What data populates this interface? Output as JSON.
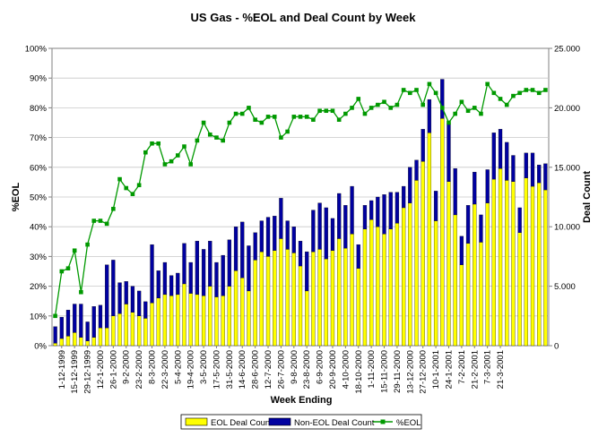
{
  "chart_data": {
    "type": "bar",
    "title": "US Gas - %EOL and Deal Count by Week",
    "xlabel": "Week Ending",
    "ylabel_left": "%EOL",
    "ylabel_right": "Deal Count",
    "ylim_left": [
      0,
      100
    ],
    "ylim_right": [
      0,
      25000
    ],
    "y_ticks_left": [
      "0%",
      "10%",
      "20%",
      "30%",
      "40%",
      "50%",
      "60%",
      "70%",
      "80%",
      "90%",
      "100%"
    ],
    "y_ticks_right": [
      "0",
      "5.000",
      "10.000",
      "15.000",
      "20.000",
      "25.000"
    ],
    "x_tick_labels": [
      "1-12-1999",
      "15-12-1999",
      "29-12-1999",
      "12-1-2000",
      "26-1-2000",
      "9-2-2000",
      "23-2-2000",
      "8-3-2000",
      "22-3-2000",
      "5-4-2000",
      "19-4-2000",
      "3-5-2000",
      "17-5-2000",
      "31-5-2000",
      "14-6-2000",
      "28-6-2000",
      "12-7-2000",
      "26-7-2000",
      "9-8-2000",
      "23-8-2000",
      "6-9-2000",
      "20-9-2000",
      "4-10-2000",
      "18-10-2000",
      "1-11-2000",
      "15-11-2000",
      "29-11-2000",
      "13-12-2000",
      "27-12-2000",
      "10-1-2001",
      "24-1-2001",
      "7-2-2001",
      "21-2-2001",
      "7-3-2001",
      "21-3-2001"
    ],
    "grid": true,
    "legend_position": "bottom",
    "series": [
      {
        "name": "EOL Deal Count",
        "kind": "bar",
        "axis": "right",
        "color": "#ffff00",
        "values": [
          200,
          600,
          800,
          1100,
          700,
          400,
          700,
          1500,
          1500,
          2500,
          2700,
          3500,
          2800,
          2500,
          2300,
          3600,
          4000,
          4300,
          4200,
          4300,
          5200,
          4400,
          4300,
          4200,
          5000,
          4100,
          4200,
          5000,
          6300,
          5700,
          4600,
          7200,
          7900,
          7500,
          8000,
          9000,
          8100,
          7800,
          6700,
          4600,
          7900,
          8100,
          7300,
          8000,
          9000,
          8200,
          9400,
          6500,
          9800,
          10600,
          10000,
          9400,
          9800,
          10300,
          11600,
          12000,
          13900,
          15500,
          17900,
          10500,
          19100,
          13800,
          11000,
          6800,
          8600,
          11900,
          8700,
          12000,
          14000,
          14900,
          13900,
          13800,
          9500,
          14100,
          13400,
          13700,
          13100
        ]
      },
      {
        "name": "Non-EOL Deal Count",
        "kind": "bar",
        "axis": "right",
        "color": "#0000a0",
        "values": [
          1400,
          1800,
          2200,
          2400,
          2800,
          1600,
          2600,
          1900,
          5300,
          4700,
          2600,
          1900,
          2200,
          2100,
          1400,
          4900,
          2300,
          2700,
          1700,
          1800,
          3400,
          2600,
          4500,
          3900,
          3800,
          2900,
          3400,
          3900,
          3700,
          4700,
          3800,
          2300,
          2600,
          3300,
          2900,
          3400,
          2400,
          2200,
          2100,
          3300,
          3500,
          3900,
          4300,
          2700,
          3800,
          3600,
          4000,
          2000,
          2000,
          1600,
          2500,
          3300,
          3100,
          2600,
          1800,
          3000,
          1700,
          2700,
          2800,
          2500,
          3300,
          4900,
          3900,
          2400,
          3200,
          2700,
          2300,
          2800,
          3900,
          3300,
          3200,
          2200,
          2100,
          2100,
          2800,
          1500,
          2200
        ]
      },
      {
        "name": "%EOL",
        "kind": "line",
        "axis": "left",
        "color": "#009900",
        "values": [
          10,
          25,
          26,
          32,
          18,
          34,
          42,
          42,
          41,
          46,
          56,
          53,
          51,
          54,
          65,
          68,
          68,
          61,
          62,
          64,
          67,
          61,
          69,
          75,
          71,
          70,
          69,
          75,
          78,
          78,
          80,
          76,
          75,
          77,
          77,
          70,
          72,
          77,
          77,
          77,
          76,
          79,
          79,
          79,
          76,
          78,
          80,
          83,
          78,
          80,
          81,
          82,
          80,
          81,
          86,
          85,
          86,
          81,
          88,
          85,
          80,
          75,
          78,
          82,
          79,
          80,
          78,
          88,
          85,
          83,
          81,
          84,
          85,
          86,
          86,
          85,
          86
        ]
      }
    ]
  },
  "legend": {
    "eol": "EOL Deal Count",
    "noneol": "Non-EOL Deal Count",
    "pct": "%EOL"
  }
}
